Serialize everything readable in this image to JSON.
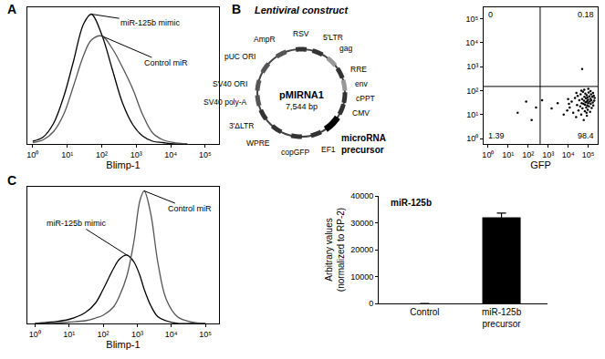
{
  "panel_labels": [
    "A",
    "B",
    "C"
  ],
  "diagram": {
    "title": "Lentiviral construct",
    "plasmid": "pMIRNA1",
    "size": "7,544 bp",
    "features": [
      "RSV",
      "5'LTR",
      "gag",
      "RRE",
      "env",
      "cPPT",
      "CMV",
      "EF1",
      "copGFP",
      "WPRE",
      "3'ΔLTR",
      "SV40 poly-A",
      "SV40 ORI",
      "pUC ORI",
      "AmpR"
    ],
    "insert": "microRNA\nprecursor"
  },
  "chart_data": [
    {
      "type": "line",
      "xlabel": "Blimp-1",
      "log": "x",
      "tick_labels": "x",
      "xlim": [
        0.7,
        250000
      ],
      "xticks": [
        {
          "value": 1,
          "label": "10⁰"
        },
        {
          "value": 10,
          "label": "10¹"
        },
        {
          "value": 100,
          "label": "10²"
        },
        {
          "value": 1000,
          "label": "10³"
        },
        {
          "value": 10000,
          "label": "10⁴"
        },
        {
          "value": 100000,
          "label": "10⁵"
        }
      ],
      "ylim": [
        0,
        100
      ],
      "yticks": [],
      "x": [
        1,
        2,
        4,
        8,
        15,
        30,
        50,
        100,
        200,
        400,
        800,
        1500,
        3000,
        6000,
        12000,
        30000
      ],
      "series": [
        {
          "name": "miR-125b mimic",
          "color": "#000000",
          "values": [
            2,
            5,
            15,
            35,
            60,
            88,
            95,
            80,
            55,
            30,
            14,
            6,
            2,
            1,
            0,
            0
          ]
        },
        {
          "name": "Control miR",
          "color": "#555555",
          "values": [
            1,
            3,
            9,
            22,
            42,
            65,
            76,
            79,
            70,
            56,
            40,
            22,
            8,
            3,
            1,
            0
          ]
        }
      ]
    },
    {
      "type": "scatter",
      "xlabel": "GFP",
      "log": true,
      "xlim": [
        0.6,
        300000
      ],
      "ylim": [
        0.6,
        300000
      ],
      "xticks": [
        {
          "value": 1,
          "label": "10⁰"
        },
        {
          "value": 10,
          "label": "10¹"
        },
        {
          "value": 100,
          "label": "10²"
        },
        {
          "value": 1000,
          "label": "10³"
        },
        {
          "value": 10000,
          "label": "10⁴"
        },
        {
          "value": 100000,
          "label": "10⁵"
        }
      ],
      "yticks": [
        {
          "value": 1,
          "label": "10⁰"
        },
        {
          "value": 10,
          "label": "10¹"
        },
        {
          "value": 100,
          "label": "10²"
        },
        {
          "value": 1000,
          "label": "10³"
        },
        {
          "value": 10000,
          "label": "10⁴"
        },
        {
          "value": 100000,
          "label": "10⁵"
        }
      ],
      "color": "#000000",
      "marker": "dot",
      "x": [
        12000,
        15000,
        18000,
        22000,
        25000,
        28000,
        30000,
        33000,
        36000,
        40000,
        42000,
        45000,
        48000,
        50000,
        52000,
        55000,
        58000,
        60000,
        62000,
        65000,
        68000,
        70000,
        72000,
        75000,
        78000,
        80000,
        83000,
        85000,
        88000,
        90000,
        92000,
        95000,
        98000,
        100000,
        105000,
        110000,
        115000,
        120000,
        125000,
        130000,
        135000,
        140000,
        145000,
        150000,
        160000,
        170000,
        180000,
        190000,
        200000,
        9000,
        10000,
        11000,
        26000,
        46000,
        64000,
        86000,
        102000,
        132000,
        175000,
        210000,
        30,
        80,
        150,
        250,
        500,
        1500,
        3000,
        6000,
        50000
      ],
      "y": [
        20,
        35,
        12,
        50,
        8,
        25,
        60,
        15,
        40,
        22,
        70,
        10,
        30,
        45,
        18,
        90,
        28,
        6,
        38,
        55,
        14,
        26,
        75,
        33,
        48,
        20,
        12,
        65,
        36,
        24,
        52,
        16,
        42,
        30,
        85,
        22,
        58,
        35,
        13,
        46,
        28,
        70,
        40,
        19,
        55,
        32,
        24,
        62,
        38,
        15,
        45,
        28,
        80,
        100,
        110,
        9,
        120,
        95,
        80,
        50,
        12,
        35,
        6,
        20,
        40,
        18,
        30,
        10,
        800
      ],
      "gates": {
        "x": 400,
        "y": 150
      },
      "quadrants": {
        "top_left": 0,
        "top_right": 0.18,
        "bottom_left": 1.39,
        "bottom_right": 98.4
      }
    },
    {
      "type": "line",
      "xlabel": "Blimp-1",
      "log": "x",
      "tick_labels": "x",
      "xlim": [
        0.6,
        250000
      ],
      "xticks": [
        {
          "value": 1,
          "label": "10⁰"
        },
        {
          "value": 10,
          "label": "10¹"
        },
        {
          "value": 100,
          "label": "10²"
        },
        {
          "value": 1000,
          "label": "10³"
        },
        {
          "value": 10000,
          "label": "10⁴"
        },
        {
          "value": 100000,
          "label": "10⁵"
        }
      ],
      "ylim": [
        0,
        100
      ],
      "yticks": [],
      "x": [
        1,
        3,
        10,
        30,
        60,
        100,
        200,
        300,
        500,
        800,
        1200,
        1600,
        2500,
        4000,
        7000,
        15000,
        40000,
        100000
      ],
      "series": [
        {
          "name": "miR-125b mimic",
          "color": "#000000",
          "values": [
            0,
            1,
            3,
            8,
            15,
            25,
            40,
            47,
            50,
            45,
            35,
            25,
            13,
            5,
            2,
            0,
            0,
            0
          ]
        },
        {
          "name": "Control miR",
          "color": "#555555",
          "values": [
            0,
            0,
            1,
            2,
            4,
            6,
            12,
            20,
            35,
            60,
            90,
            97,
            80,
            45,
            18,
            5,
            1,
            0
          ]
        }
      ]
    },
    {
      "type": "bar",
      "title": "miR-125b",
      "ylabel": "Arbitrary values\n(normalized to RP-2)",
      "categories": [
        "Control",
        "miR-125b\nprecursor"
      ],
      "values": [
        0,
        32000
      ],
      "errors": [
        0,
        1600
      ],
      "color": "#000000",
      "ylim": [
        0,
        40000
      ],
      "yticks": [
        0,
        10000,
        20000,
        30000,
        40000
      ]
    }
  ]
}
